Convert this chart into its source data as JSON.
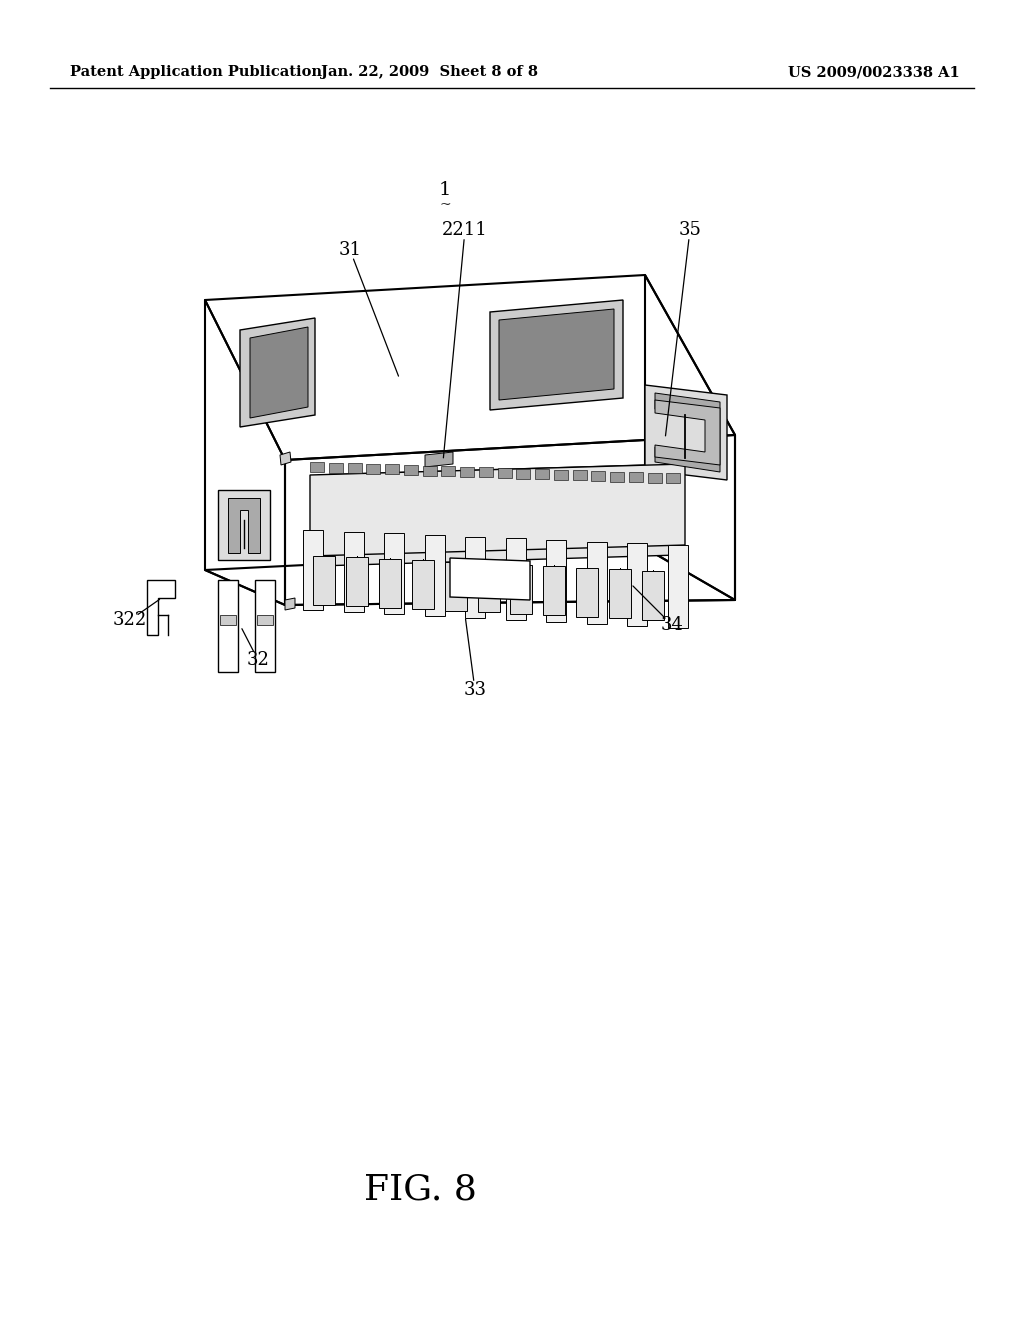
{
  "background_color": "#ffffff",
  "header_left": "Patent Application Publication",
  "header_center": "Jan. 22, 2009  Sheet 8 of 8",
  "header_right": "US 2009/0023338 A1",
  "header_fontsize": 10.5,
  "figure_label": "FIG. 8",
  "figure_label_fontsize": 26,
  "lw_main": 1.4,
  "lw_detail": 0.9,
  "lw_fine": 0.6
}
